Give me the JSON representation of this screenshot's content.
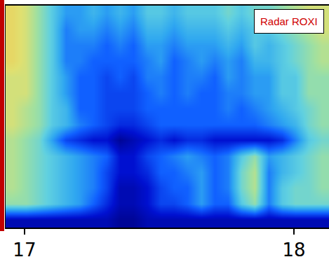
{
  "chart_data": {
    "type": "heatmap",
    "annotations": [
      "Radar ROXI"
    ],
    "x": [
      16.955,
      17.005,
      17.055,
      17.105,
      17.155,
      17.205,
      17.255,
      17.305,
      17.355,
      17.405,
      17.455,
      17.505,
      17.555,
      17.605,
      17.655,
      17.705,
      17.755,
      17.805,
      17.855,
      17.905,
      17.955,
      18.005,
      18.055,
      18.105
    ],
    "xlim": [
      16.93,
      18.13
    ],
    "xticks": [
      17,
      18
    ],
    "tick_labels": "x",
    "grid": false,
    "zlim": [
      0,
      10
    ],
    "cells": [
      [
        1,
        1,
        1,
        1,
        1,
        1,
        1,
        1,
        0.5,
        0.5,
        1,
        1,
        1,
        1,
        1,
        1,
        1,
        1,
        1,
        1,
        1,
        1,
        1,
        1
      ],
      [
        6,
        6,
        5.5,
        5,
        4.5,
        4,
        3,
        2,
        1,
        1,
        1.5,
        2.5,
        2.5,
        3,
        4,
        3,
        3,
        5,
        6,
        3.5,
        5,
        5.5,
        5.5,
        5.5
      ],
      [
        6.5,
        6,
        5.5,
        5,
        4.5,
        4,
        3.5,
        2.5,
        1,
        1,
        1.5,
        2.5,
        3,
        3,
        4,
        3,
        3.5,
        5.5,
        6.5,
        3.5,
        5,
        5.5,
        5.5,
        6
      ],
      [
        6.5,
        6,
        5.5,
        5,
        4.5,
        4,
        3.5,
        2.5,
        1.5,
        1.5,
        2,
        3,
        3,
        3.5,
        4,
        3,
        3.5,
        5.5,
        6.5,
        3.5,
        4.5,
        5,
        5.5,
        6
      ],
      [
        6.5,
        6,
        5.5,
        5,
        4.5,
        4,
        3.5,
        3,
        1.5,
        1.5,
        2.5,
        3,
        3.5,
        4,
        3.5,
        3,
        3.5,
        5,
        6,
        4,
        4.5,
        5,
        5.5,
        6
      ],
      [
        6.5,
        6,
        5.5,
        4,
        2.5,
        2,
        1.5,
        1.5,
        0.5,
        1,
        1.5,
        2,
        1.5,
        2,
        2,
        1.5,
        1.5,
        1.5,
        1.5,
        1.5,
        2,
        3.5,
        5,
        5.5
      ],
      [
        7,
        6.5,
        6,
        5,
        4.5,
        3.5,
        3,
        2.5,
        2,
        2,
        2.5,
        3,
        3,
        3,
        3,
        3,
        3,
        3,
        3,
        3.5,
        4,
        4.5,
        5.5,
        6
      ],
      [
        7,
        6.5,
        6,
        5,
        4.5,
        3,
        3,
        2.5,
        2.5,
        2.5,
        3,
        3,
        3,
        3,
        3,
        3,
        3.5,
        3,
        3.5,
        4,
        4.5,
        5,
        5.5,
        6
      ],
      [
        7,
        7,
        6,
        5,
        4,
        3,
        3,
        2.5,
        2.5,
        2.5,
        3,
        3.5,
        3,
        3.5,
        3,
        3,
        3.5,
        3.5,
        4,
        4,
        5,
        5,
        6,
        6
      ],
      [
        7,
        7,
        6,
        5,
        4,
        3,
        3,
        2.5,
        3,
        2.5,
        3.5,
        3.5,
        3,
        3.5,
        3.5,
        3,
        4,
        3.5,
        4,
        4,
        5,
        5,
        6,
        6
      ],
      [
        7.5,
        7,
        6,
        5,
        3.5,
        3.5,
        3,
        3,
        3,
        3,
        3.5,
        4,
        3,
        3.5,
        4,
        3.5,
        4,
        3.5,
        4.5,
        4.5,
        5,
        5.5,
        6,
        6.5
      ],
      [
        7.5,
        7,
        6,
        5,
        3.5,
        3.5,
        3.5,
        3,
        3.5,
        3,
        4,
        4,
        3.5,
        4,
        4,
        4,
        4.5,
        4,
        5,
        4.5,
        5,
        5.5,
        6,
        6.5
      ],
      [
        7.5,
        7,
        6,
        5,
        3.5,
        4,
        4,
        3.5,
        4,
        3.5,
        4.5,
        4.5,
        4,
        4.5,
        4.5,
        4.5,
        5,
        4.5,
        5,
        5,
        5.5,
        6,
        6.5,
        7
      ],
      [
        7.5,
        7,
        6,
        5,
        4,
        4,
        4.5,
        4,
        4.5,
        4,
        5,
        5,
        4.5,
        5,
        5,
        5,
        5.5,
        5,
        5.5,
        5.5,
        6,
        6.5,
        7,
        7
      ]
    ]
  }
}
